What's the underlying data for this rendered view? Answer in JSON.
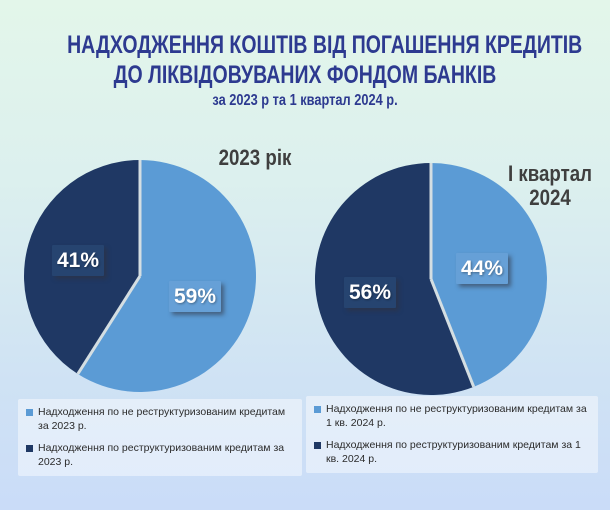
{
  "slide": {
    "title_line1": "НАДХОДЖЕННЯ КОШТІВ ВІД ПОГАШЕННЯ КРЕДИТІВ",
    "title_line2": "ДО ЛІКВІДОВУВАНИХ ФОНДОМ БАНКІВ",
    "subtitle": "за 2023 р та 1 квартал 2024 р."
  },
  "colors": {
    "background_top": "#e3f6ea",
    "background_bottom": "#cadcf8",
    "title_text": "#2d3a90",
    "chart_title_text": "#3f3f3f",
    "slice_light_blue": "#5B9BD5",
    "slice_dark_navy": "#1F3864",
    "label_box_light": "#66A0D7",
    "label_box_dark": "#264470",
    "slice_separator": "#d4dee2",
    "legend_text": "#2b2b2b"
  },
  "chart_data": [
    {
      "type": "pie",
      "title": "2023 рік",
      "values": [
        59,
        41
      ],
      "value_labels": [
        "59%",
        "41%"
      ],
      "colors": [
        "#5B9BD5",
        "#1F3864"
      ],
      "start_angle": "top",
      "direction": "clockwise",
      "legend_position": "bottom",
      "legend": [
        {
          "label": "Надходження по не реструктуризованим кредитам за 2023 р.",
          "color": "#5B9BD5"
        },
        {
          "label": "Надходження по реструктуризованим кредитам за 2023 р.",
          "color": "#1F3864"
        }
      ]
    },
    {
      "type": "pie",
      "title": "І квартал 2024",
      "values": [
        44,
        56
      ],
      "value_labels": [
        "44%",
        "56%"
      ],
      "colors": [
        "#5B9BD5",
        "#1F3864"
      ],
      "start_angle": "top",
      "direction": "clockwise",
      "legend_position": "bottom",
      "legend": [
        {
          "label": "Надходження по не реструктуризованим кредитам за 1 кв. 2024 р.",
          "color": "#5B9BD5"
        },
        {
          "label": "Надходження по реструктуризованим кредитам за 1 кв. 2024 р.",
          "color": "#1F3864"
        }
      ]
    }
  ]
}
